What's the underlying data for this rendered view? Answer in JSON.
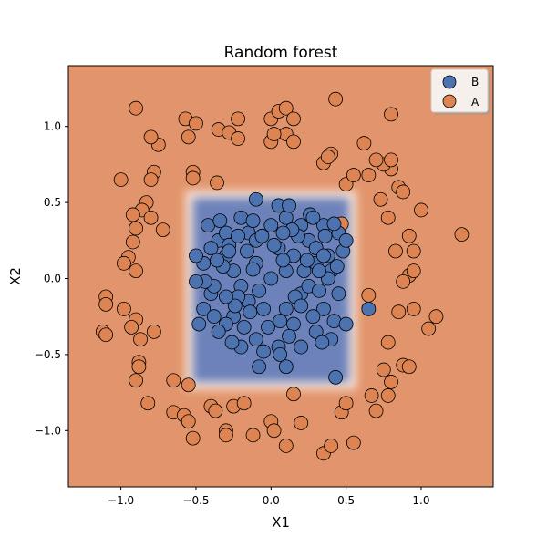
{
  "chart_data": {
    "type": "scatter",
    "title": "Random forest",
    "xlabel": "X1",
    "ylabel": "X2",
    "xlim": [
      -1.35,
      1.48
    ],
    "ylim": [
      -1.37,
      1.4
    ],
    "xticks": [
      -1.0,
      -0.5,
      0.0,
      0.5,
      1.0
    ],
    "yticks": [
      -1.0,
      -0.5,
      0.0,
      0.5,
      1.0
    ],
    "xtick_labels": [
      "−1.0",
      "−0.5",
      "0.0",
      "0.5",
      "1.0"
    ],
    "ytick_labels": [
      "−1.0",
      "−0.5",
      "0.0",
      "0.5",
      "1.0"
    ],
    "grid": false,
    "legend_position": "top-right",
    "background_color": "#e2956c",
    "decision_region": {
      "class": "B",
      "x_range": [
        -0.52,
        0.52
      ],
      "y_range": [
        -0.68,
        0.53
      ],
      "color": "#5572b5"
    },
    "series": [
      {
        "name": "B",
        "color": "#4c72b0",
        "points": [
          [
            0.0,
            0.0
          ],
          [
            0.1,
            0.05
          ],
          [
            -0.1,
            0.1
          ],
          [
            0.2,
            -0.1
          ],
          [
            -0.2,
            -0.05
          ],
          [
            0.05,
            0.2
          ],
          [
            -0.05,
            -0.2
          ],
          [
            0.3,
            0.1
          ],
          [
            -0.3,
            0.15
          ],
          [
            0.15,
            -0.3
          ],
          [
            -0.15,
            0.3
          ],
          [
            0.25,
            0.25
          ],
          [
            -0.25,
            -0.25
          ],
          [
            0.35,
            -0.2
          ],
          [
            -0.35,
            0.25
          ],
          [
            0.4,
            0.05
          ],
          [
            -0.4,
            -0.1
          ],
          [
            0.1,
            0.4
          ],
          [
            -0.1,
            -0.4
          ],
          [
            0.3,
            -0.35
          ],
          [
            -0.3,
            -0.3
          ],
          [
            0.2,
            0.35
          ],
          [
            -0.2,
            0.4
          ],
          [
            0.45,
            0.3
          ],
          [
            -0.45,
            -0.2
          ],
          [
            0.0,
            0.35
          ],
          [
            0.05,
            -0.45
          ],
          [
            0.4,
            -0.4
          ],
          [
            -0.4,
            0.2
          ],
          [
            0.15,
            0.15
          ],
          [
            -0.15,
            -0.15
          ],
          [
            0.25,
            -0.05
          ],
          [
            -0.25,
            0.05
          ],
          [
            0.35,
            0.35
          ],
          [
            -0.35,
            -0.35
          ],
          [
            0.1,
            -0.2
          ],
          [
            -0.1,
            0.25
          ],
          [
            0.3,
            0.2
          ],
          [
            -0.3,
            0.3
          ],
          [
            0.2,
            -0.45
          ],
          [
            -0.2,
            -0.45
          ],
          [
            0.45,
            -0.1
          ],
          [
            -0.45,
            0.1
          ],
          [
            0.05,
            0.48
          ],
          [
            -0.05,
            -0.48
          ],
          [
            0.38,
            0.15
          ],
          [
            -0.38,
            -0.05
          ],
          [
            0.12,
            -0.38
          ],
          [
            -0.12,
            0.38
          ],
          [
            0.28,
            -0.25
          ],
          [
            -0.28,
            0.22
          ],
          [
            0.18,
            0.28
          ],
          [
            -0.18,
            -0.32
          ],
          [
            0.42,
            -0.28
          ],
          [
            -0.42,
            0.35
          ],
          [
            0.08,
            0.12
          ],
          [
            -0.08,
            -0.08
          ],
          [
            0.22,
            0.05
          ],
          [
            -0.22,
            -0.12
          ],
          [
            0.32,
            -0.08
          ],
          [
            -0.32,
            0.08
          ],
          [
            0.48,
            0.18
          ],
          [
            -0.48,
            -0.3
          ],
          [
            0.16,
            -0.12
          ],
          [
            -0.16,
            0.18
          ],
          [
            0.26,
            0.42
          ],
          [
            -0.26,
            -0.42
          ],
          [
            0.36,
            0.28
          ],
          [
            -0.36,
            0.12
          ],
          [
            0.06,
            -0.28
          ],
          [
            -0.06,
            0.28
          ],
          [
            0.44,
            0.08
          ],
          [
            -0.44,
            -0.02
          ],
          [
            0.14,
            0.32
          ],
          [
            -0.14,
            -0.22
          ],
          [
            0.34,
            -0.42
          ],
          [
            -0.34,
            0.38
          ],
          [
            0.24,
            0.12
          ],
          [
            -0.24,
            -0.18
          ],
          [
            0.02,
            0.22
          ],
          [
            -0.02,
            -0.32
          ],
          [
            0.5,
            0.25
          ],
          [
            -0.5,
            0.15
          ],
          [
            0.5,
            -0.3
          ],
          [
            -0.5,
            -0.02
          ],
          [
            0.65,
            -0.2
          ],
          [
            0.43,
            -0.65
          ],
          [
            -0.1,
            0.52
          ],
          [
            0.12,
            0.48
          ],
          [
            0.28,
            0.4
          ],
          [
            0.42,
            0.36
          ],
          [
            0.35,
            0.15
          ],
          [
            0.38,
            0.0
          ],
          [
            -0.08,
            -0.58
          ],
          [
            0.1,
            -0.58
          ],
          [
            0.06,
            -0.5
          ],
          [
            -0.28,
            0.18
          ],
          [
            -0.22,
            0.28
          ],
          [
            -0.38,
            -0.25
          ],
          [
            -0.3,
            -0.12
          ],
          [
            0.2,
            -0.18
          ],
          [
            0.08,
            0.3
          ],
          [
            -0.12,
            0.06
          ],
          [
            0.32,
            0.05
          ]
        ]
      },
      {
        "name": "A",
        "color": "#dd8452",
        "points": [
          [
            -0.9,
            1.12
          ],
          [
            -0.75,
            0.88
          ],
          [
            -0.57,
            1.05
          ],
          [
            -0.5,
            1.02
          ],
          [
            -0.35,
            0.98
          ],
          [
            -0.28,
            0.96
          ],
          [
            -0.22,
            1.05
          ],
          [
            -0.22,
            0.92
          ],
          [
            0.0,
            1.05
          ],
          [
            0.05,
            1.1
          ],
          [
            0.1,
            1.12
          ],
          [
            0.15,
            1.05
          ],
          [
            0.1,
            0.95
          ],
          [
            0.0,
            0.9
          ],
          [
            0.43,
            1.18
          ],
          [
            0.62,
            0.89
          ],
          [
            0.8,
            1.08
          ],
          [
            -0.8,
            0.93
          ],
          [
            -0.55,
            0.93
          ],
          [
            -0.78,
            0.7
          ],
          [
            -0.8,
            0.65
          ],
          [
            -0.52,
            0.7
          ],
          [
            -0.52,
            0.66
          ],
          [
            -0.36,
            0.63
          ],
          [
            -1.0,
            0.65
          ],
          [
            -0.83,
            0.5
          ],
          [
            -0.86,
            0.45
          ],
          [
            -0.92,
            0.42
          ],
          [
            -0.9,
            0.33
          ],
          [
            -0.92,
            0.24
          ],
          [
            -0.8,
            0.4
          ],
          [
            -0.72,
            0.32
          ],
          [
            -0.95,
            0.14
          ],
          [
            -0.98,
            0.1
          ],
          [
            -0.9,
            0.05
          ],
          [
            -1.1,
            -0.12
          ],
          [
            -1.1,
            -0.17
          ],
          [
            -0.98,
            -0.2
          ],
          [
            -0.9,
            -0.27
          ],
          [
            -0.93,
            -0.32
          ],
          [
            -0.78,
            -0.35
          ],
          [
            -0.87,
            -0.4
          ],
          [
            -1.12,
            -0.35
          ],
          [
            -1.1,
            -0.37
          ],
          [
            -0.88,
            -0.55
          ],
          [
            -0.88,
            -0.58
          ],
          [
            -0.9,
            -0.67
          ],
          [
            -0.65,
            -0.67
          ],
          [
            -0.55,
            -0.7
          ],
          [
            -0.65,
            -0.88
          ],
          [
            -0.58,
            -0.9
          ],
          [
            -0.55,
            -0.94
          ],
          [
            -0.4,
            -0.84
          ],
          [
            -0.37,
            -0.87
          ],
          [
            -0.3,
            -1.0
          ],
          [
            -0.3,
            -1.03
          ],
          [
            -0.25,
            -0.84
          ],
          [
            -0.18,
            -0.82
          ],
          [
            -0.12,
            -1.03
          ],
          [
            -0.52,
            -1.05
          ],
          [
            -0.82,
            -0.82
          ],
          [
            0.0,
            -0.94
          ],
          [
            0.02,
            -1.0
          ],
          [
            0.1,
            -1.1
          ],
          [
            0.15,
            -0.76
          ],
          [
            0.2,
            -0.95
          ],
          [
            0.35,
            -1.15
          ],
          [
            0.4,
            -1.1
          ],
          [
            0.47,
            -0.88
          ],
          [
            0.5,
            -0.82
          ],
          [
            0.55,
            -1.08
          ],
          [
            0.67,
            -0.77
          ],
          [
            0.7,
            -0.87
          ],
          [
            0.78,
            -0.77
          ],
          [
            0.8,
            -0.68
          ],
          [
            0.88,
            -0.57
          ],
          [
            0.92,
            -0.58
          ],
          [
            0.75,
            -0.6
          ],
          [
            0.78,
            -0.42
          ],
          [
            0.85,
            -0.22
          ],
          [
            0.95,
            -0.2
          ],
          [
            1.05,
            -0.33
          ],
          [
            1.1,
            -0.25
          ],
          [
            0.92,
            0.02
          ],
          [
            0.88,
            -0.02
          ],
          [
            0.95,
            0.05
          ],
          [
            0.95,
            0.18
          ],
          [
            0.92,
            0.28
          ],
          [
            0.83,
            0.18
          ],
          [
            0.78,
            0.4
          ],
          [
            1.0,
            0.45
          ],
          [
            0.85,
            0.6
          ],
          [
            0.88,
            0.57
          ],
          [
            0.73,
            0.52
          ],
          [
            0.8,
            0.72
          ],
          [
            0.75,
            0.75
          ],
          [
            0.8,
            0.78
          ],
          [
            0.7,
            0.78
          ],
          [
            0.65,
            0.68
          ],
          [
            0.5,
            0.62
          ],
          [
            0.55,
            0.68
          ],
          [
            0.4,
            0.82
          ],
          [
            0.35,
            0.76
          ],
          [
            1.27,
            0.29
          ],
          [
            0.47,
            0.36
          ],
          [
            0.65,
            -0.11
          ],
          [
            0.15,
            0.9
          ],
          [
            0.38,
            0.8
          ],
          [
            0.02,
            0.95
          ]
        ]
      }
    ]
  }
}
